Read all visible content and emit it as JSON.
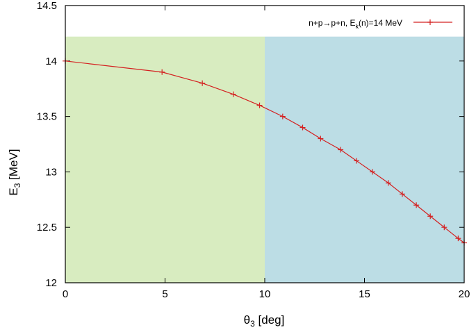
{
  "chart_data": {
    "type": "line",
    "xlabel": {
      "main": "θ",
      "sub": "3",
      "rest": " [deg]"
    },
    "ylabel": {
      "main": "E",
      "sub": "3",
      "rest": " [MeV]"
    },
    "xlim": [
      0,
      20
    ],
    "ylim": [
      12,
      14.5
    ],
    "xticks": [
      "0",
      "5",
      "10",
      "15",
      "20"
    ],
    "xtick_values": [
      0,
      5,
      10,
      15,
      20
    ],
    "yticks": [
      "12",
      "12.5",
      "13",
      "13.5",
      "14",
      "14.5"
    ],
    "ytick_values": [
      12,
      12.5,
      13,
      13.5,
      14,
      14.5
    ],
    "grid": false,
    "legend_placement": "top-right",
    "shaded_regions": [
      {
        "x": [
          0,
          10
        ],
        "y": [
          12,
          14.22
        ],
        "color": "#d8ecc0"
      },
      {
        "x": [
          10,
          20
        ],
        "y": [
          12,
          14.22
        ],
        "color": "#bcdde5"
      }
    ],
    "series": [
      {
        "legend": {
          "pre": "n+p→p+n, E",
          "sub": "k",
          "post": "(n)=14 MeV"
        },
        "color": "#d42020",
        "marker": "plus",
        "x": [
          0,
          4.85,
          6.87,
          8.42,
          9.74,
          10.9,
          11.9,
          12.8,
          13.8,
          14.6,
          15.4,
          16.2,
          16.9,
          17.6,
          18.3,
          19.0,
          19.7,
          20.0
        ],
        "y": [
          14.0,
          13.9,
          13.8,
          13.7,
          13.6,
          13.5,
          13.4,
          13.3,
          13.2,
          13.1,
          13.0,
          12.9,
          12.8,
          12.7,
          12.6,
          12.5,
          12.4,
          12.36
        ]
      }
    ]
  }
}
